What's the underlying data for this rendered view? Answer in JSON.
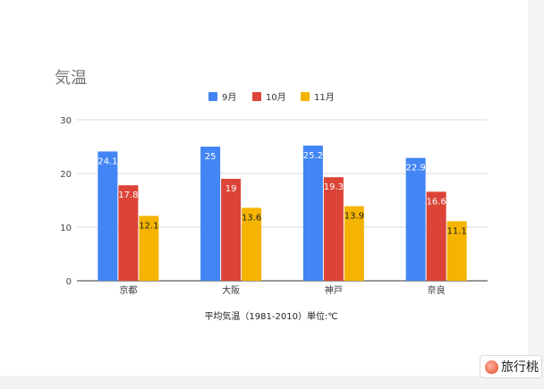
{
  "chart_data": {
    "type": "bar",
    "title": "気温",
    "xlabel": "平均気温（1981-2010）単位:℃",
    "ylabel": "",
    "ylim": [
      0,
      30
    ],
    "yticks": [
      0,
      10,
      20,
      30
    ],
    "grid": true,
    "legend_position": "top",
    "categories": [
      "京都",
      "大阪",
      "神戸",
      "奈良"
    ],
    "series": [
      {
        "name": "9月",
        "color": "#4285f4",
        "values": [
          24.1,
          25,
          25.2,
          22.9
        ],
        "label_color": "#ffffff"
      },
      {
        "name": "10月",
        "color": "#db4437",
        "values": [
          17.8,
          19,
          19.3,
          16.6
        ],
        "label_color": "#ffffff"
      },
      {
        "name": "11月",
        "color": "#f4b400",
        "values": [
          12.1,
          13.6,
          13.9,
          11.1
        ],
        "label_color": "#222222"
      }
    ]
  },
  "watermark": {
    "text": "旅行桃",
    "icon": "peach-icon"
  }
}
